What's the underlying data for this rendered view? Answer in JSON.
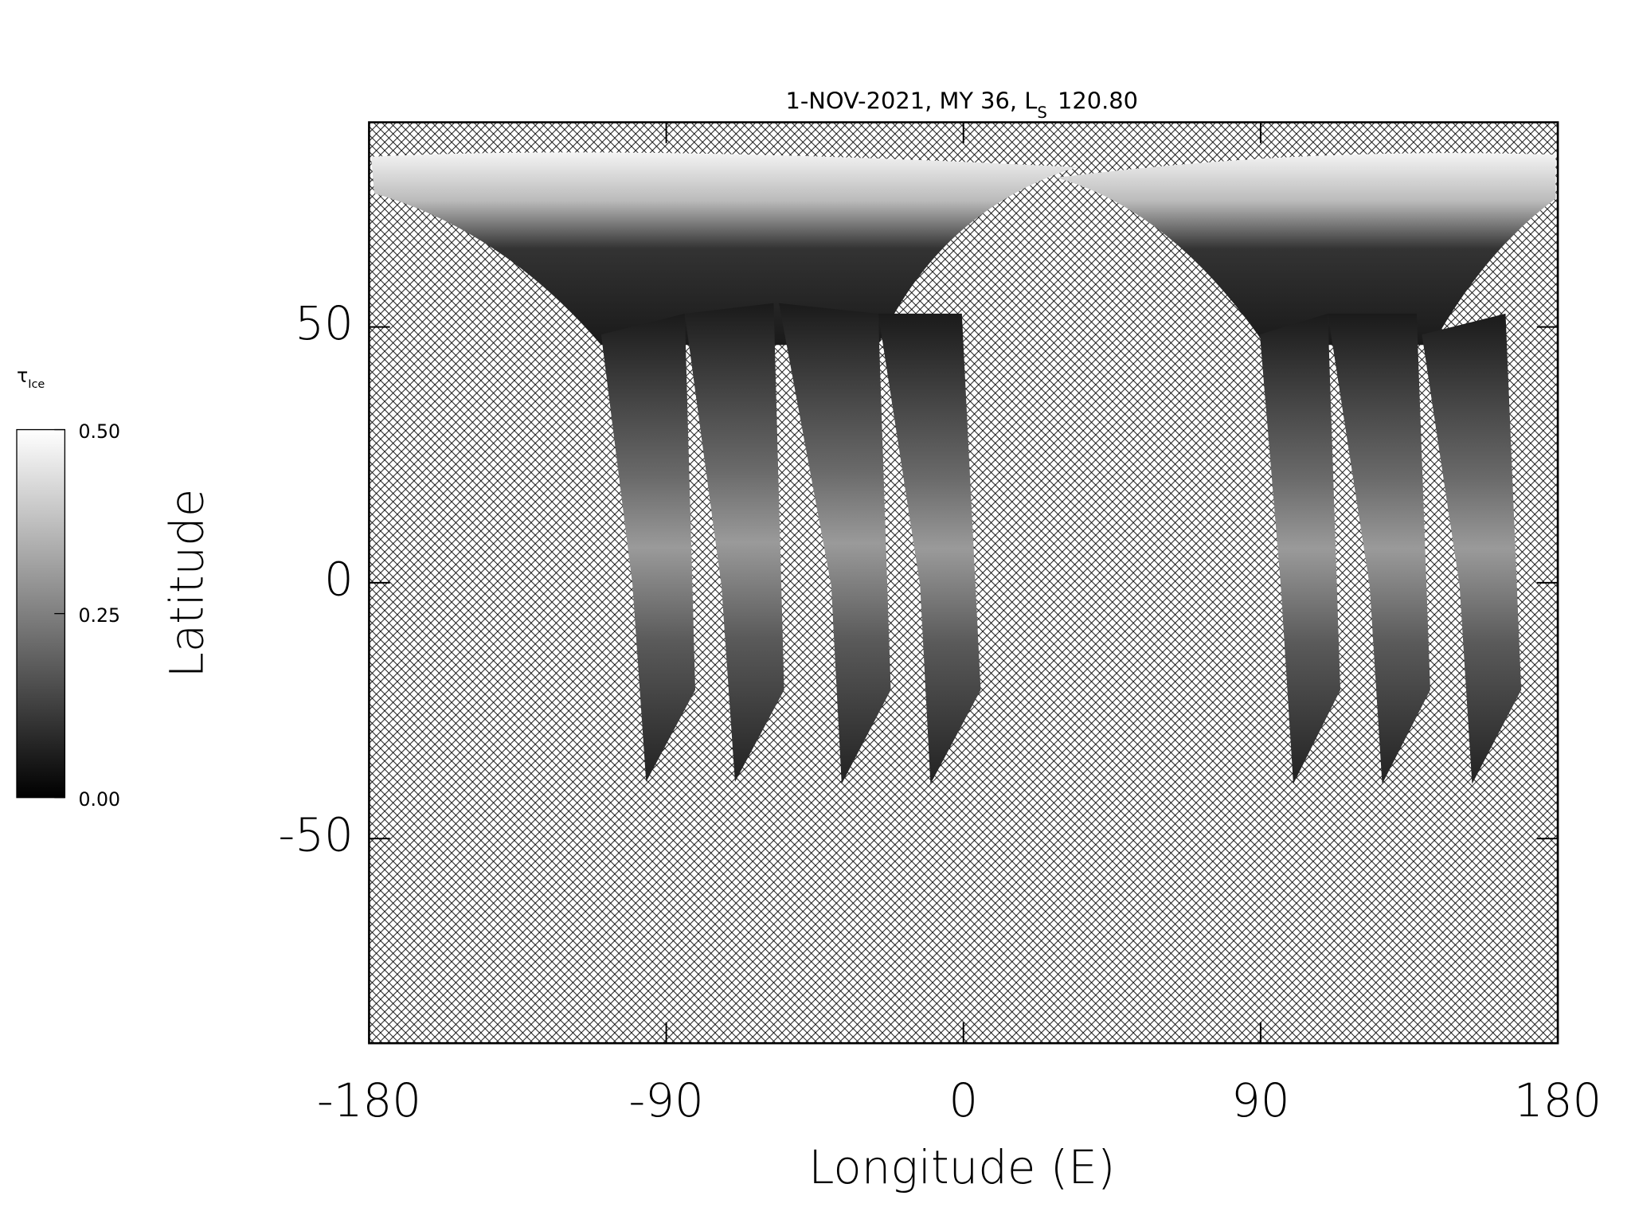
{
  "chart_data": {
    "type": "map",
    "title": "1-NOV-2021, MY 36,  L",
    "title_sub": "S",
    "title_end": "120.80",
    "x_label": "Longitude (E)",
    "y_label": "Latitude",
    "xlim": [
      -180,
      180
    ],
    "xticks": [
      -180,
      -90,
      0,
      90,
      180
    ],
    "ylim": [
      -90,
      90
    ],
    "yticks": [
      -50,
      0,
      50
    ],
    "colorbar": {
      "label": "τ",
      "label_sub": "Ice",
      "lim": [
        0,
        0.5
      ],
      "ticks": [
        {
          "value": 0,
          "label": "0.00"
        },
        {
          "value": 0.25,
          "label": "0.25"
        },
        {
          "value": 0.5,
          "label": "0.50"
        }
      ],
      "colors": [
        "#000000",
        "#ffffff"
      ]
    }
  }
}
